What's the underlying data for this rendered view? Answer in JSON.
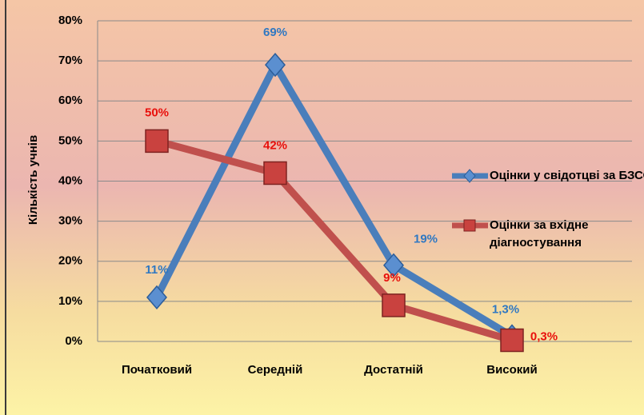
{
  "chart_data": {
    "type": "line",
    "y_label": "Кількість учнів",
    "categories": [
      "Початковий",
      "Середній",
      "Достатній",
      "Високий"
    ],
    "series": [
      {
        "name": "Оцінки у свідотцві за БЗСО",
        "color": "#4a7ebb",
        "label_color": "#2f78c2",
        "marker": "diamond",
        "values": [
          11,
          69,
          19,
          1.3
        ],
        "value_labels": [
          "11%",
          "69%",
          "19%",
          "1,3%"
        ]
      },
      {
        "name": "Оцінки за вхідне діагностування",
        "color": "#c0504d",
        "label_color": "#e8100c",
        "marker": "square",
        "values": [
          50,
          42,
          9,
          0.3
        ],
        "value_labels": [
          "50%",
          "42%",
          "9%",
          "0,3%"
        ]
      }
    ],
    "ylim": [
      0,
      80
    ],
    "yticks": [
      {
        "value": 0,
        "label": "0%"
      },
      {
        "value": 10,
        "label": "10%"
      },
      {
        "value": 20,
        "label": "20%"
      },
      {
        "value": 30,
        "label": "30%"
      },
      {
        "value": 40,
        "label": "40%"
      },
      {
        "value": 50,
        "label": "50%"
      },
      {
        "value": 60,
        "label": "60%"
      },
      {
        "value": 70,
        "label": "70%"
      },
      {
        "value": 80,
        "label": "80%"
      }
    ],
    "grid": true,
    "legend": "right"
  }
}
